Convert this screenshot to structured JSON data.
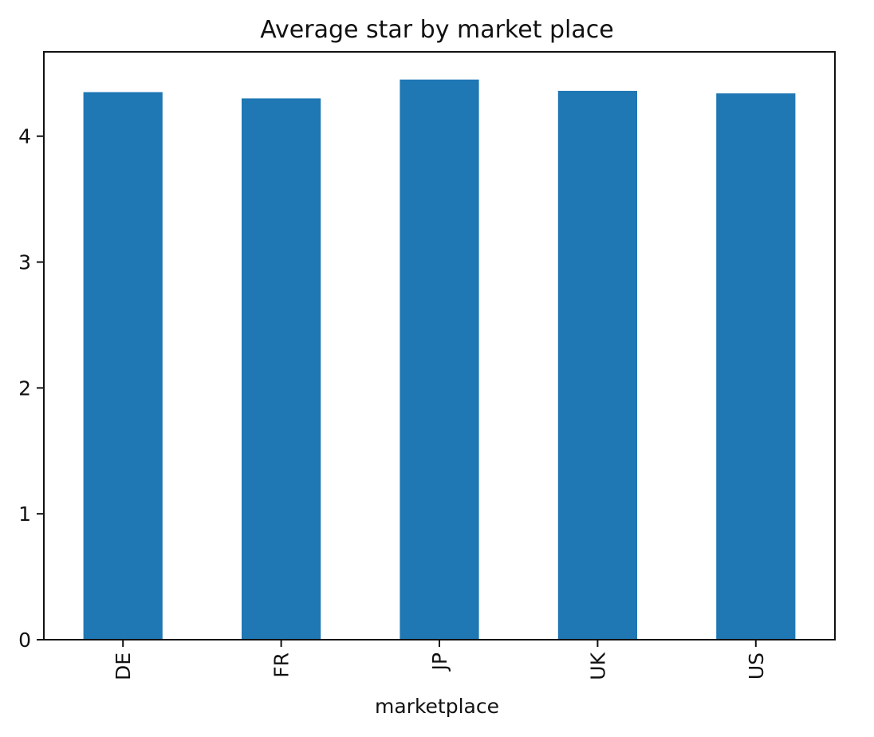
{
  "colors": {
    "bar": "#1f77b4",
    "axis": "#111111",
    "background": "#ffffff"
  },
  "chart_data": {
    "type": "bar",
    "title": "Average star by market place",
    "xlabel": "marketplace",
    "ylabel": "",
    "categories": [
      "DE",
      "FR",
      "JP",
      "UK",
      "US"
    ],
    "values": [
      4.35,
      4.3,
      4.45,
      4.36,
      4.34
    ],
    "ylim": [
      0,
      4.67
    ],
    "yticks": [
      0,
      1,
      2,
      3,
      4
    ],
    "grid": false,
    "legend": false
  }
}
